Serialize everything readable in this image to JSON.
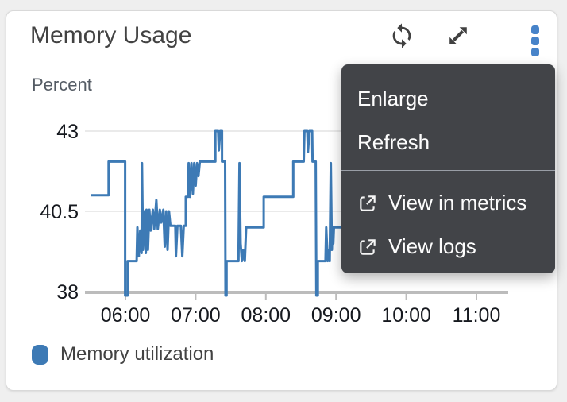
{
  "widget": {
    "title": "Memory Usage",
    "unit_label": "Percent",
    "toolbar": {
      "icons": [
        "refresh-icon",
        "expand-diagonal-icon",
        "vertical-ellipsis-icon"
      ]
    }
  },
  "menu": {
    "items": [
      {
        "label": "Enlarge",
        "icon": null
      },
      {
        "label": "Refresh",
        "icon": null
      },
      {
        "label": "View in metrics",
        "icon": "external-link-icon"
      },
      {
        "label": "View logs",
        "icon": "external-link-icon"
      }
    ],
    "divider_after_index": 1
  },
  "legend": {
    "label": "Memory utilization",
    "color": "#3d7ab5"
  },
  "colors": {
    "line_blue": "#3d7ab5",
    "ellipsis_blue": "#4783c9",
    "menu_background": "#424448",
    "menu_text": "#fdfdfd",
    "icon_gray": "#414141",
    "axis_label": "#16191f",
    "gridline": "#eaeaea",
    "axis_line": "#bcbcbc"
  },
  "chart_data": {
    "type": "line",
    "title": "Memory Usage",
    "ylabel": "Percent",
    "xlabel": "",
    "grid": true,
    "legend_position": "bottom-left",
    "ylim": [
      38,
      43
    ],
    "xlim_hours": [
      5.42,
      11.45
    ],
    "y_ticks": [
      {
        "value": 38,
        "label": "38"
      },
      {
        "value": 40.5,
        "label": "40.5"
      },
      {
        "value": 43,
        "label": "43"
      }
    ],
    "x_ticks": [
      {
        "hour": 6,
        "label": "06:00"
      },
      {
        "hour": 7,
        "label": "07:00"
      },
      {
        "hour": 8,
        "label": "08:00"
      },
      {
        "hour": 9,
        "label": "09:00"
      },
      {
        "hour": 10,
        "label": "10:00"
      },
      {
        "hour": 11,
        "label": "11:00"
      }
    ],
    "series": [
      {
        "name": "Memory utilization",
        "color": "#3d7ab5",
        "points": [
          [
            5.51,
            41.0
          ],
          [
            5.76,
            41.0
          ],
          [
            5.76,
            42.05
          ],
          [
            5.995,
            42.05
          ],
          [
            5.995,
            38.0
          ],
          [
            6.03,
            38.0
          ],
          [
            6.03,
            38.95
          ],
          [
            6.16,
            38.95
          ],
          [
            6.17,
            40.0
          ],
          [
            6.19,
            39.1
          ],
          [
            6.21,
            39.9
          ],
          [
            6.23,
            39.2
          ],
          [
            6.235,
            42.0
          ],
          [
            6.25,
            39.3
          ],
          [
            6.27,
            40.5
          ],
          [
            6.29,
            39.2
          ],
          [
            6.3,
            40.55
          ],
          [
            6.32,
            39.3
          ],
          [
            6.34,
            40.55
          ],
          [
            6.36,
            39.9
          ],
          [
            6.39,
            40.55
          ],
          [
            6.41,
            39.95
          ],
          [
            6.44,
            40.85
          ],
          [
            6.46,
            39.95
          ],
          [
            6.49,
            40.55
          ],
          [
            6.51,
            40.15
          ],
          [
            6.54,
            40.55
          ],
          [
            6.56,
            39.4
          ],
          [
            6.58,
            40.5
          ],
          [
            6.6,
            39.3
          ],
          [
            6.62,
            40.5
          ],
          [
            6.64,
            40.05
          ],
          [
            6.71,
            40.05
          ],
          [
            6.72,
            39.1
          ],
          [
            6.74,
            40.05
          ],
          [
            6.79,
            40.05
          ],
          [
            6.81,
            39.1
          ],
          [
            6.83,
            40.05
          ],
          [
            6.86,
            40.05
          ],
          [
            6.86,
            40.95
          ],
          [
            6.89,
            40.95
          ],
          [
            6.9,
            42.0
          ],
          [
            6.92,
            40.95
          ],
          [
            6.94,
            42.0
          ],
          [
            6.96,
            41.05
          ],
          [
            6.98,
            42.0
          ],
          [
            7.0,
            41.3
          ],
          [
            7.02,
            42.0
          ],
          [
            7.04,
            41.6
          ],
          [
            7.06,
            42.05
          ],
          [
            7.17,
            42.05
          ],
          [
            7.28,
            42.05
          ],
          [
            7.28,
            43.0
          ],
          [
            7.32,
            43.0
          ],
          [
            7.33,
            42.4
          ],
          [
            7.35,
            43.0
          ],
          [
            7.375,
            43.0
          ],
          [
            7.375,
            42.05
          ],
          [
            7.42,
            42.05
          ],
          [
            7.425,
            38.0
          ],
          [
            7.44,
            38.0
          ],
          [
            7.44,
            38.95
          ],
          [
            7.61,
            38.95
          ],
          [
            7.625,
            42.0
          ],
          [
            7.64,
            39.5
          ],
          [
            7.66,
            38.95
          ],
          [
            7.68,
            39.3
          ],
          [
            7.7,
            38.95
          ],
          [
            7.72,
            40.0
          ],
          [
            7.97,
            40.0
          ],
          [
            7.97,
            40.95
          ],
          [
            8.39,
            40.95
          ],
          [
            8.39,
            42.05
          ],
          [
            8.54,
            42.05
          ],
          [
            8.55,
            43.0
          ],
          [
            8.59,
            43.0
          ],
          [
            8.6,
            42.35
          ],
          [
            8.62,
            43.0
          ],
          [
            8.66,
            43.0
          ],
          [
            8.665,
            42.05
          ],
          [
            8.71,
            42.05
          ],
          [
            8.72,
            38.0
          ],
          [
            8.74,
            38.0
          ],
          [
            8.74,
            38.95
          ],
          [
            8.85,
            38.95
          ],
          [
            8.86,
            40.0
          ],
          [
            8.88,
            38.95
          ],
          [
            8.9,
            39.3
          ],
          [
            8.91,
            38.95
          ],
          [
            8.925,
            42.0
          ],
          [
            8.94,
            39.3
          ],
          [
            8.95,
            40.0
          ],
          [
            8.96,
            39.5
          ],
          [
            8.97,
            40.0
          ],
          [
            9.1,
            40.0
          ]
        ]
      }
    ]
  }
}
